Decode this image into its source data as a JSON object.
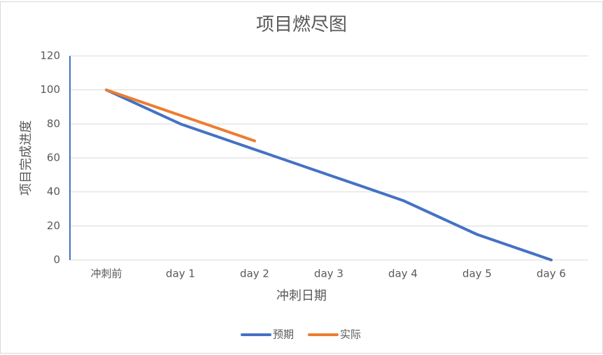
{
  "chart_data": {
    "type": "line",
    "title": "项目燃尽图",
    "x_label": "冲刺日期",
    "y_label": "项目完成进度",
    "categories": [
      "冲刺前",
      "day 1",
      "day 2",
      "day 3",
      "day 4",
      "day 5",
      "day 6"
    ],
    "series": [
      {
        "name": "预期",
        "color": "#4472c4",
        "values": [
          100,
          80,
          65,
          50,
          35,
          15,
          0
        ]
      },
      {
        "name": "实际",
        "color": "#ed7d31",
        "values": [
          100,
          85,
          70,
          null,
          null,
          null,
          null
        ]
      }
    ],
    "ylim": [
      0,
      120
    ],
    "yticks": [
      0,
      20,
      40,
      60,
      80,
      100,
      120
    ],
    "grid": true,
    "legend": "bottom"
  }
}
